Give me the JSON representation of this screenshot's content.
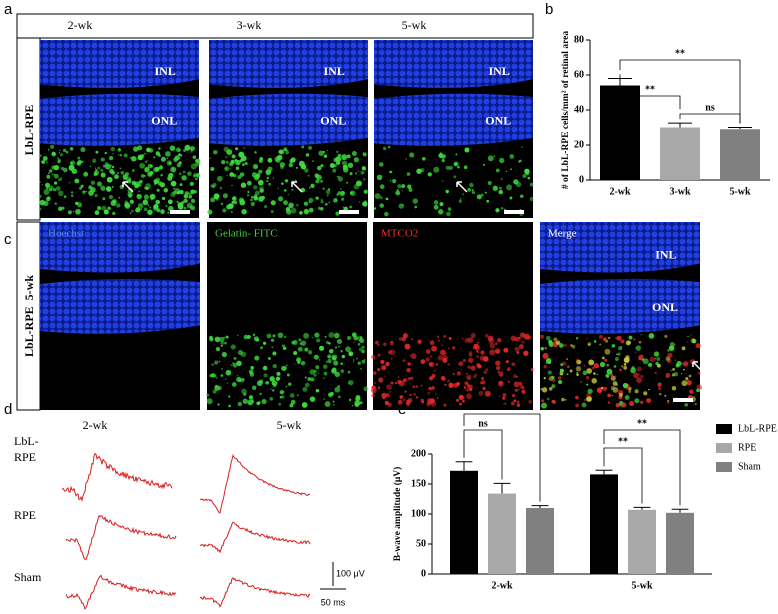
{
  "panel_a": {
    "label": "a",
    "columns": [
      "2-wk",
      "3-wk",
      "5-wk"
    ],
    "row_label": "LbL-RPE",
    "layers": [
      "INL",
      "ONL"
    ]
  },
  "panel_c": {
    "label": "c",
    "columns": [
      "Hoechst",
      "Gelatin- FITC",
      "MTCO2",
      "Merge"
    ],
    "row_label": "LbL-RPE  5-wk",
    "layers": [
      "INL",
      "ONL"
    ]
  },
  "panel_d": {
    "label": "d",
    "columns": [
      "2-wk",
      "5-wk"
    ],
    "rows": [
      "LbL-\nRPE",
      "RPE",
      "Sham"
    ],
    "scale_voltage": "100 μV",
    "scale_time": "50 ms"
  },
  "chart_data": [
    {
      "type": "bar",
      "label": "b",
      "y_label": "# of LbL-RPE cells/mm² of retinal area",
      "categories": [
        "2-wk",
        "3-wk",
        "5-wk"
      ],
      "values": [
        54,
        30,
        29
      ],
      "errors": [
        4,
        2.5,
        1
      ],
      "colors": [
        "#000000",
        "#a8a8a8",
        "#808080"
      ],
      "ylim": [
        0,
        80
      ],
      "yticks": [
        0,
        20,
        40,
        60,
        80
      ],
      "annotations": [
        "**",
        "**",
        "ns"
      ]
    },
    {
      "type": "grouped_bar",
      "label": "e",
      "y_label": "B-wave amplitude (μV)",
      "categories": [
        "2-wk",
        "5-wk"
      ],
      "series": [
        {
          "name": "LbL-RPE",
          "color": "#000000",
          "values": [
            172,
            166
          ],
          "errors": [
            15,
            7
          ]
        },
        {
          "name": "RPE",
          "color": "#a8a8a8",
          "values": [
            134,
            107
          ],
          "errors": [
            17,
            4
          ]
        },
        {
          "name": "Sham",
          "color": "#808080",
          "values": [
            110,
            102
          ],
          "errors": [
            4,
            6
          ]
        }
      ],
      "ylim": [
        0,
        200
      ],
      "yticks": [
        0,
        50,
        100,
        150,
        200
      ],
      "legend": "right",
      "annotations": [
        "ns",
        "**",
        "**",
        "**"
      ]
    }
  ]
}
